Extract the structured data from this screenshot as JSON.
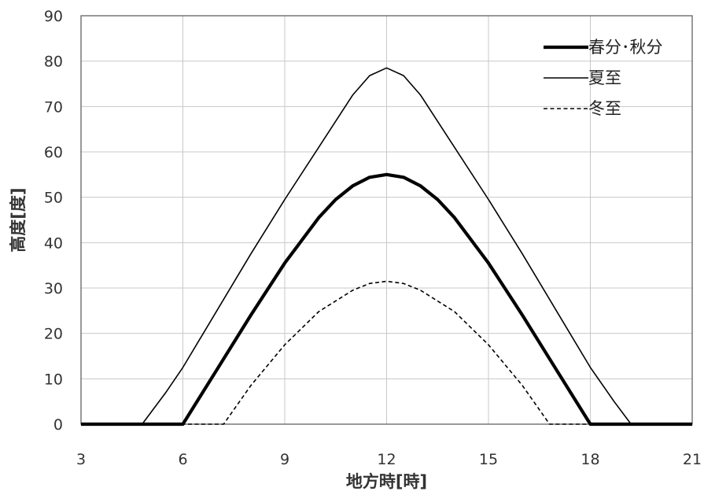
{
  "chart_data": {
    "type": "line",
    "xlabel": "地方時[時]",
    "ylabel": "高度[度]",
    "xlim": [
      3,
      21
    ],
    "ylim": [
      0,
      90
    ],
    "xticks": [
      3,
      6,
      9,
      12,
      15,
      18,
      21
    ],
    "yticks": [
      0,
      10,
      20,
      30,
      40,
      50,
      60,
      70,
      80,
      90
    ],
    "grid": true,
    "legend_position": "top-right",
    "series": [
      {
        "name": "春分･秋分",
        "style": "thick",
        "x": [
          3,
          6,
          7,
          8,
          9,
          10,
          10.5,
          11,
          11.5,
          12,
          12.5,
          13,
          13.5,
          14,
          15,
          16,
          17,
          18,
          21
        ],
        "y": [
          0,
          0,
          12,
          24,
          35.5,
          45.5,
          49.5,
          52.5,
          54.4,
          55,
          54.4,
          52.5,
          49.5,
          45.5,
          35.5,
          24,
          12,
          0,
          0
        ]
      },
      {
        "name": "夏至",
        "style": "thin",
        "x": [
          3,
          4.8,
          5.5,
          6,
          7,
          8,
          9,
          10,
          11,
          11.5,
          12,
          12.5,
          13,
          14,
          15,
          16,
          17,
          18,
          18.7,
          19.2,
          21
        ],
        "y": [
          0,
          0,
          7,
          12.5,
          25,
          37.5,
          49.5,
          61,
          72.5,
          76.8,
          78.5,
          76.8,
          72.5,
          61,
          49.5,
          37.5,
          25,
          12.5,
          5,
          0,
          0
        ]
      },
      {
        "name": "冬至",
        "style": "dashed",
        "x": [
          3,
          7.2,
          8,
          9,
          10,
          11,
          11.5,
          12,
          12.5,
          13,
          14,
          15,
          16,
          16.8,
          21
        ],
        "y": [
          0,
          0,
          8.5,
          17.5,
          24.8,
          29.5,
          31,
          31.5,
          31,
          29.5,
          24.8,
          17.5,
          8.5,
          0,
          0
        ]
      }
    ]
  }
}
